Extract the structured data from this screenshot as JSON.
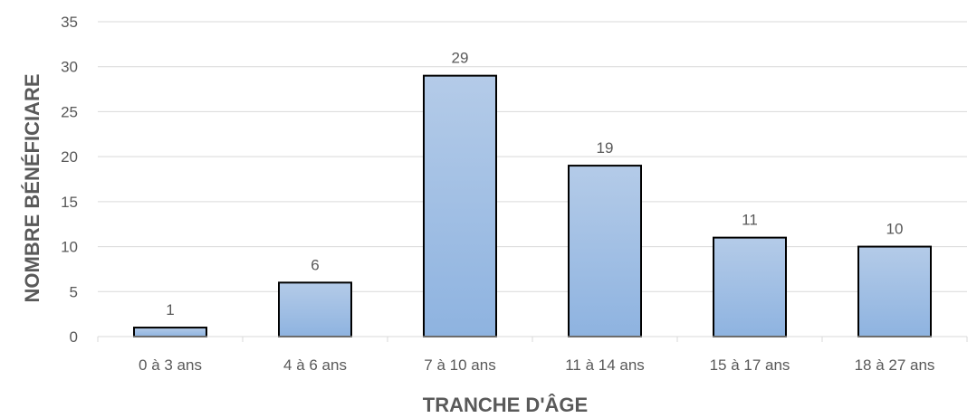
{
  "chart_data": {
    "type": "bar",
    "categories": [
      "0 à 3 ans",
      "4 à 6 ans",
      "7 à 10 ans",
      "11 à 14 ans",
      "15 à 17 ans",
      "18 à 27 ans"
    ],
    "values": [
      1,
      6,
      29,
      19,
      11,
      10
    ],
    "xlabel": "TRANCHE D'ÂGE",
    "ylabel": "NOMBRE BÉNÉFICIARE",
    "ylim": [
      0,
      35
    ],
    "yticks": [
      0,
      5,
      10,
      15,
      20,
      25,
      30,
      35
    ],
    "grid": true,
    "data_labels": true,
    "legend": "none",
    "colors": {
      "bar_top": "#b4cbe8",
      "bar_bottom": "#8eb3e0",
      "bar_border": "#000000",
      "grid": "#d9d9d9",
      "text": "#595959"
    }
  }
}
